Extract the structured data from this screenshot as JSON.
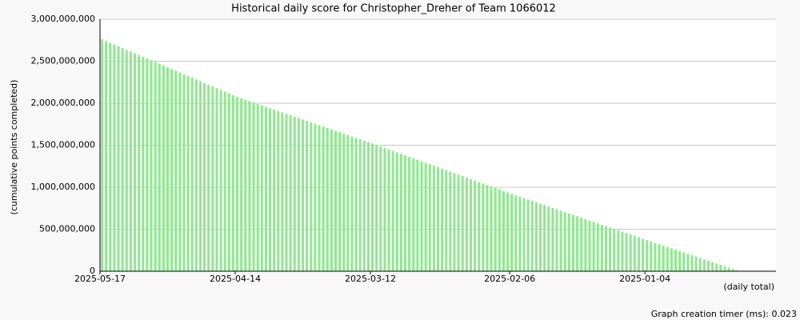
{
  "chart_data": {
    "type": "bar",
    "title": "Historical daily score for Christopher_Dreher of Team 1066012",
    "y_label": "(cumulative points completed)",
    "x_label": "(daily total)",
    "footer": "Graph creation timer (ms): 0.023",
    "color": "#90e890",
    "grid": true,
    "ylim": [
      0,
      3000000000
    ],
    "yticks": [
      0,
      {
        "value": 500000000,
        "label": "500,000,000"
      },
      {
        "value": 1000000000,
        "label": "1,000,000,000"
      },
      {
        "value": 1500000000,
        "label": "1,500,000,000"
      },
      {
        "value": 2000000000,
        "label": "2,000,000,000"
      },
      {
        "value": 2500000000,
        "label": "2,500,000,000"
      },
      {
        "value": 3000000000,
        "label": "3,000,000,000"
      }
    ],
    "categories": [
      "2025-05-17",
      null,
      null,
      null,
      null,
      null,
      null,
      null,
      null,
      null,
      null,
      null,
      null,
      null,
      null,
      null,
      null,
      null,
      null,
      null,
      null,
      null,
      null,
      null,
      null,
      null,
      null,
      null,
      null,
      null,
      null,
      null,
      null,
      "2025-04-14",
      null,
      null,
      null,
      null,
      null,
      null,
      null,
      null,
      null,
      null,
      null,
      null,
      null,
      null,
      null,
      null,
      null,
      null,
      null,
      null,
      null,
      null,
      null,
      null,
      null,
      null,
      null,
      null,
      null,
      null,
      null,
      null,
      "2025-03-12",
      null,
      null,
      null,
      null,
      null,
      null,
      null,
      null,
      null,
      null,
      null,
      null,
      null,
      null,
      null,
      null,
      null,
      null,
      null,
      null,
      null,
      null,
      null,
      null,
      null,
      null,
      null,
      null,
      null,
      null,
      null,
      null,
      null,
      "2025-02-06",
      null,
      null,
      null,
      null,
      null,
      null,
      null,
      null,
      null,
      null,
      null,
      null,
      null,
      null,
      null,
      null,
      null,
      null,
      null,
      null,
      null,
      null,
      null,
      null,
      null,
      null,
      null,
      null,
      null,
      null,
      null,
      null,
      "2025-01-04",
      null,
      null,
      null,
      null,
      null,
      null,
      null,
      null,
      null,
      null,
      null,
      null,
      null,
      null,
      null,
      null,
      null,
      null,
      null,
      null,
      null,
      null,
      null,
      null,
      null,
      null,
      null,
      null,
      null,
      null,
      null
    ],
    "values": [
      2760000000,
      2739000000,
      2718000000,
      2698000000,
      2677000000,
      2656000000,
      2635000000,
      2615000000,
      2594000000,
      2573000000,
      2552000000,
      2532000000,
      2511000000,
      2490000000,
      2469000000,
      2449000000,
      2428000000,
      2407000000,
      2386000000,
      2365000000,
      2345000000,
      2324000000,
      2303000000,
      2282000000,
      2262000000,
      2241000000,
      2220000000,
      2199000000,
      2179000000,
      2158000000,
      2137000000,
      2116000000,
      2096000000,
      2075000000,
      2058000000,
      2041000000,
      2025000000,
      2008000000,
      1991000000,
      1974000000,
      1957000000,
      1940000000,
      1924000000,
      1907000000,
      1890000000,
      1873000000,
      1856000000,
      1839000000,
      1823000000,
      1806000000,
      1789000000,
      1772000000,
      1755000000,
      1738000000,
      1722000000,
      1705000000,
      1688000000,
      1671000000,
      1654000000,
      1637000000,
      1621000000,
      1604000000,
      1587000000,
      1570000000,
      1553000000,
      1537000000,
      1520000000,
      1502000000,
      1485000000,
      1467000000,
      1449000000,
      1432000000,
      1414000000,
      1396000000,
      1379000000,
      1361000000,
      1343000000,
      1326000000,
      1308000000,
      1290000000,
      1273000000,
      1255000000,
      1238000000,
      1220000000,
      1202000000,
      1185000000,
      1167000000,
      1149000000,
      1132000000,
      1114000000,
      1096000000,
      1079000000,
      1061000000,
      1043000000,
      1026000000,
      1008000000,
      991000000,
      973000000,
      955000000,
      938000000,
      920000000,
      903000000,
      887000000,
      870000000,
      853000000,
      837000000,
      820000000,
      803000000,
      787000000,
      770000000,
      753000000,
      737000000,
      720000000,
      703000000,
      687000000,
      670000000,
      653000000,
      637000000,
      620000000,
      603000000,
      587000000,
      570000000,
      553000000,
      537000000,
      520000000,
      503000000,
      487000000,
      470000000,
      453000000,
      437000000,
      420000000,
      403000000,
      387000000,
      370000000,
      354000000,
      337000000,
      321000000,
      305000000,
      288000000,
      272000000,
      256000000,
      239000000,
      223000000,
      207000000,
      190000000,
      174000000,
      157000000,
      141000000,
      125000000,
      108000000,
      92000000,
      76000000,
      59000000,
      43000000,
      26000000,
      10000000,
      null,
      null,
      null,
      null,
      null,
      null,
      null,
      null,
      null
    ]
  }
}
